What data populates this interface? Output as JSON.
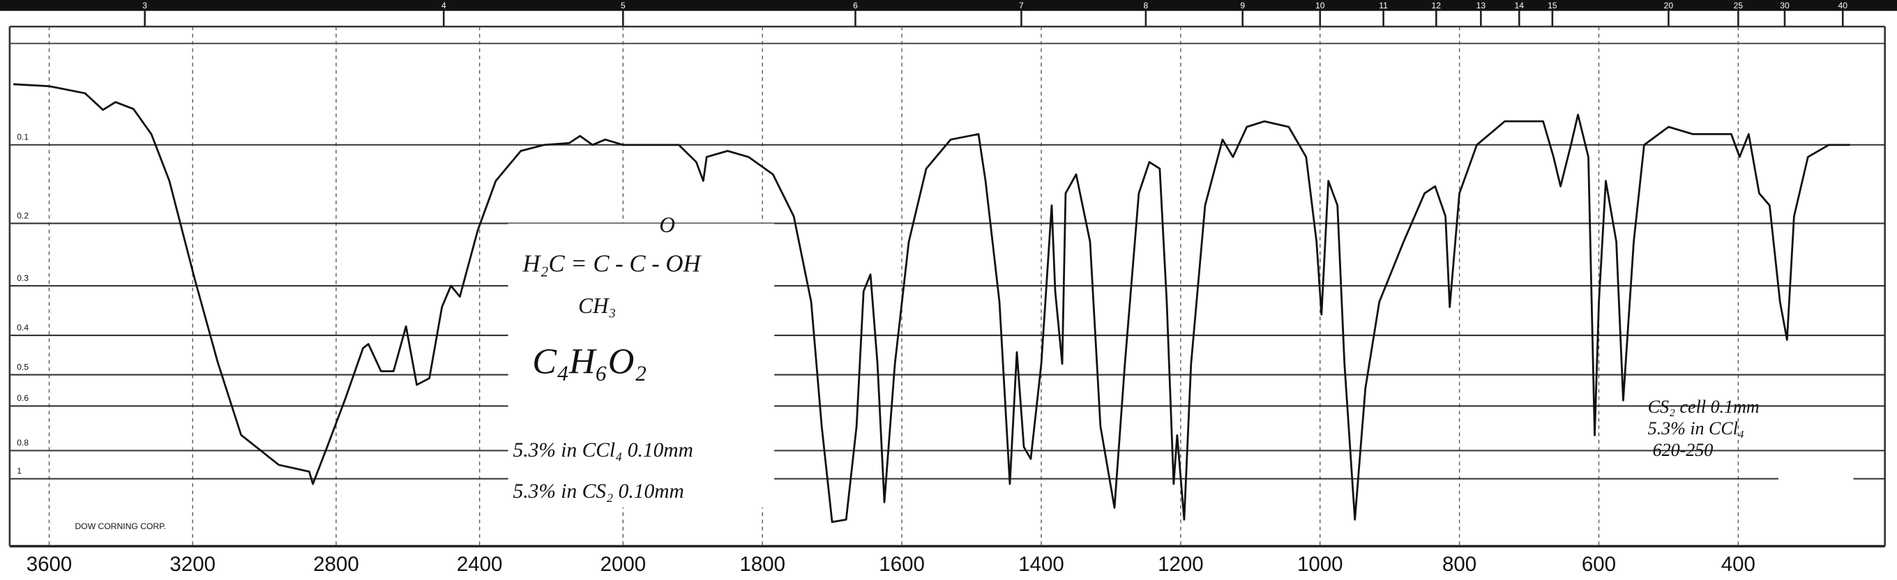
{
  "chart_data": {
    "type": "line",
    "x": [
      3700,
      3600,
      3500,
      3450,
      3415,
      3365,
      3315,
      3265,
      3195,
      3130,
      3065,
      2960,
      2875,
      2865,
      2825,
      2775,
      2725,
      2710,
      2675,
      2640,
      2605,
      2575,
      2540,
      2505,
      2480,
      2455,
      2405,
      2355,
      2285,
      2220,
      2150,
      2120,
      2085,
      2050,
      2000,
      1920,
      1895,
      1885,
      1880,
      1850,
      1820,
      1785,
      1755,
      1730,
      1715,
      1700,
      1680,
      1665,
      1655,
      1645,
      1635,
      1625,
      1610,
      1590,
      1565,
      1530,
      1490,
      1480,
      1460,
      1445,
      1435,
      1425,
      1415,
      1400,
      1385,
      1380,
      1370,
      1365,
      1350,
      1330,
      1315,
      1295,
      1280,
      1260,
      1245,
      1230,
      1220,
      1210,
      1205,
      1195,
      1185,
      1165,
      1140,
      1125,
      1105,
      1080,
      1045,
      1020,
      1005,
      998,
      988,
      975,
      965,
      950,
      935,
      915,
      880,
      850,
      835,
      820,
      814,
      800,
      775,
      735,
      680,
      665,
      655,
      640,
      630,
      615,
      606,
      600,
      590,
      575,
      565,
      550,
      535,
      500,
      465,
      410,
      398,
      385,
      370,
      355,
      340,
      330,
      320,
      300,
      270,
      240
    ],
    "values": [
      0.036,
      0.038,
      0.045,
      0.062,
      0.054,
      0.061,
      0.088,
      0.143,
      0.286,
      0.466,
      0.719,
      0.89,
      0.94,
      1.05,
      0.78,
      0.577,
      0.43,
      0.42,
      0.49,
      0.49,
      0.38,
      0.53,
      0.51,
      0.34,
      0.3,
      0.32,
      0.21,
      0.143,
      0.107,
      0.1,
      0.098,
      0.09,
      0.1,
      0.094,
      0.1,
      0.1,
      0.12,
      0.143,
      0.114,
      0.107,
      0.114,
      0.135,
      0.19,
      0.33,
      0.68,
      2.0,
      1.82,
      0.68,
      0.31,
      0.28,
      0.47,
      1.29,
      0.47,
      0.227,
      0.128,
      0.094,
      0.088,
      0.143,
      0.33,
      1.05,
      0.44,
      0.78,
      0.85,
      0.47,
      0.175,
      0.31,
      0.47,
      0.159,
      0.135,
      0.227,
      0.68,
      1.4,
      0.47,
      0.159,
      0.12,
      0.128,
      0.33,
      1.05,
      0.72,
      1.82,
      0.47,
      0.175,
      0.094,
      0.114,
      0.08,
      0.074,
      0.08,
      0.114,
      0.227,
      0.355,
      0.143,
      0.175,
      0.47,
      1.82,
      0.54,
      0.33,
      0.227,
      0.159,
      0.15,
      0.19,
      0.34,
      0.159,
      0.1,
      0.074,
      0.074,
      0.114,
      0.15,
      0.1,
      0.067,
      0.114,
      0.72,
      0.33,
      0.143,
      0.227,
      0.58,
      0.227,
      0.1,
      0.08,
      0.088,
      0.088,
      0.114,
      0.088,
      0.159,
      0.175,
      0.33,
      0.41,
      0.19,
      0.114,
      0.1,
      0.1
    ],
    "color": "#111111",
    "xlim": [
      3700,
      200
    ],
    "xscale_break": 2000,
    "xticks": [
      3600,
      3200,
      2800,
      2400,
      2000,
      1800,
      1600,
      1400,
      1200,
      1000,
      800,
      600,
      400
    ],
    "x2ticks": [
      3,
      4,
      5,
      6,
      7,
      8,
      9,
      10,
      11,
      12,
      13,
      14,
      15,
      20,
      25,
      30,
      40
    ],
    "yscale": "absorbance",
    "ylim": [
      0,
      2
    ],
    "yticks": [
      0.1,
      0.2,
      0.3,
      0.4,
      0.5,
      0.6,
      0.8,
      1
    ],
    "grid": true,
    "annotations": {
      "formula": "H₂C = C - C - OH",
      "oxygen": "O",
      "methyl": "CH₃",
      "molecular": "C₄H₆O₂",
      "cell1": "5.3% in CCl₄ 0.10mm",
      "cell2": "5.3% in CS₂ 0.10mm",
      "cell3": "CS₂ cell 0.1mm",
      "cell4": "5.3% in CCl₄",
      "range": "620-250",
      "maker": "DOW CORNING CORP."
    }
  }
}
